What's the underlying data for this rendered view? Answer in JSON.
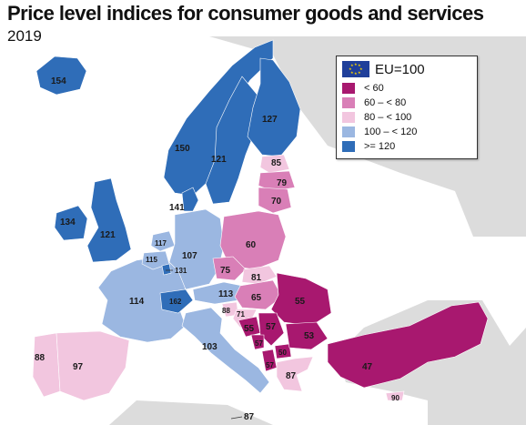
{
  "title": "Price level indices for consumer goods and services",
  "subtitle": "2019",
  "legend": {
    "reference_label": "EU=100",
    "flag_icon": "eu-flag-icon",
    "classes": [
      {
        "label": "< 60",
        "color": "#a8186f"
      },
      {
        "label": "60 – < 80",
        "color": "#d97fb7"
      },
      {
        "label": "80 – < 100",
        "color": "#f2c6df"
      },
      {
        "label": "100 – < 120",
        "color": "#9bb7e1"
      },
      {
        "label": ">= 120",
        "color": "#2f6db8"
      }
    ]
  },
  "map": {
    "background_color": "#dcdcdc",
    "sea_color": "#ffffff",
    "labels": {
      "iceland": "154",
      "norway": "150",
      "sweden": "121",
      "finland": "127",
      "estonia": "85",
      "latvia": "79",
      "lithuania": "70",
      "denmark": "141",
      "ireland": "134",
      "uk": "121",
      "netherlands": "117",
      "belgium": "115",
      "luxembourg": "131",
      "germany": "107",
      "poland": "60",
      "czechia": "75",
      "slovakia": "81",
      "france": "114",
      "switzerland": "162",
      "austria": "113",
      "hungary": "65",
      "romania": "55",
      "slovenia": "88",
      "croatia": "71",
      "bosnia": "55",
      "serbia": "57",
      "montenegro": "57",
      "north_macedonia": "50",
      "albania": "57",
      "bulgaria": "53",
      "greece": "87",
      "turkey": "47",
      "italy": "103",
      "portugal": "88",
      "spain": "97",
      "malta": "87",
      "cyprus": "90"
    }
  }
}
